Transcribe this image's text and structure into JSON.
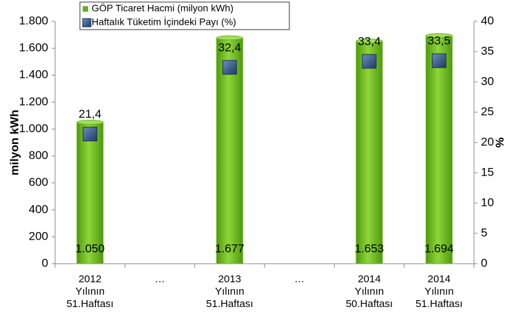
{
  "chart_data": {
    "type": "bar",
    "categories": [
      "2012\nYılının\n51.Haftası",
      "…",
      "2013\nYılının\n51.Haftası",
      "…",
      "2014\nYılının\n50.Haftası",
      "2014\nYılının\n51.Haftası"
    ],
    "series": [
      {
        "name": "GÖP Ticaret Hacmi (milyon kWh)",
        "color": "#66b21a",
        "values": [
          1050,
          null,
          1677,
          null,
          1653,
          1694
        ],
        "value_labels": [
          "1.050",
          null,
          "1.677",
          null,
          "1.653",
          "1.694"
        ]
      },
      {
        "name": "Haftalık Tüketim İçindeki Payı (%)",
        "color": "#2e4f7f",
        "axis": "y2",
        "values": [
          21.4,
          null,
          32.4,
          null,
          33.4,
          33.5
        ],
        "value_labels": [
          "21,4",
          null,
          "32,4",
          null,
          "33,4",
          "33,5"
        ]
      }
    ],
    "ylabel": "milyon kWh",
    "y2label": "%",
    "ylim": [
      0,
      1800
    ],
    "yticks": [
      0,
      200,
      400,
      600,
      800,
      {
        "value": 1000,
        "label": "1.000"
      },
      {
        "value": 1200,
        "label": "1.200"
      },
      {
        "value": 1400,
        "label": "1.400"
      },
      {
        "value": 1600,
        "label": "1.600"
      },
      {
        "value": 1800,
        "label": "1.800"
      }
    ],
    "y2lim": [
      0,
      40
    ],
    "y2ticks": [
      0,
      5,
      10,
      15,
      20,
      25,
      30,
      35,
      40
    ],
    "grid": false
  }
}
